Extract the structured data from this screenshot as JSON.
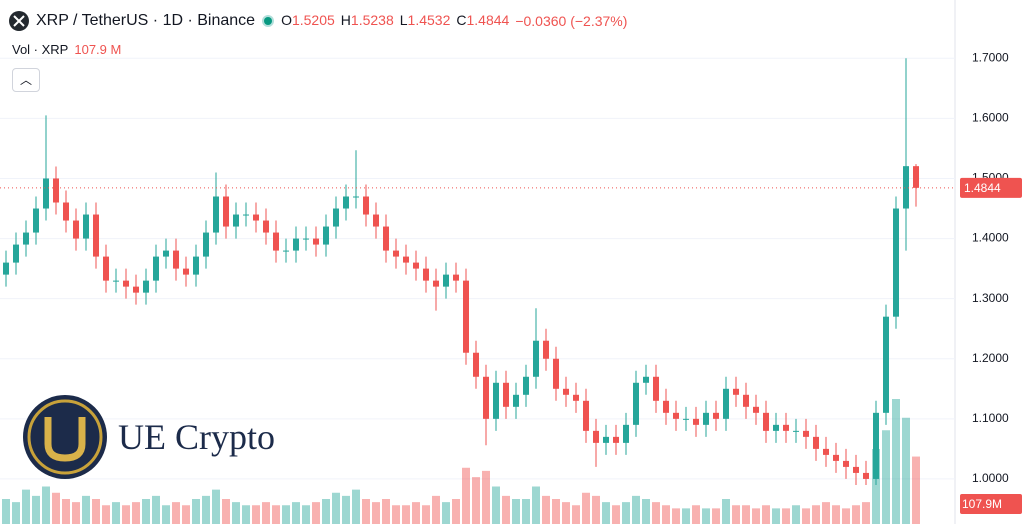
{
  "header": {
    "symbol": "XRP / TetherUS · 1D · Binance",
    "o_label": "O",
    "h_label": "H",
    "l_label": "L",
    "c_label": "C",
    "change": "−0.0360 (−2.37%)",
    "volume_title": "Vol · XRP",
    "volume_value": "107.9 M"
  },
  "watermark": "UE Crypto",
  "chart_data": {
    "type": "candlestick",
    "open": [
      1.34,
      1.36,
      1.39,
      1.41,
      1.45,
      1.5,
      1.46,
      1.43,
      1.4,
      1.44,
      1.37,
      1.33,
      1.33,
      1.32,
      1.31,
      1.33,
      1.37,
      1.38,
      1.35,
      1.34,
      1.37,
      1.41,
      1.47,
      1.42,
      1.44,
      1.44,
      1.43,
      1.41,
      1.38,
      1.38,
      1.4,
      1.4,
      1.39,
      1.42,
      1.45,
      1.47,
      1.47,
      1.44,
      1.42,
      1.38,
      1.37,
      1.36,
      1.35,
      1.33,
      1.32,
      1.34,
      1.33,
      1.21,
      1.17,
      1.1,
      1.16,
      1.12,
      1.14,
      1.17,
      1.23,
      1.2,
      1.15,
      1.14,
      1.13,
      1.08,
      1.06,
      1.07,
      1.06,
      1.09,
      1.16,
      1.17,
      1.13,
      1.11,
      1.1,
      1.1,
      1.09,
      1.11,
      1.1,
      1.15,
      1.14,
      1.12,
      1.11,
      1.08,
      1.09,
      1.08,
      1.08,
      1.07,
      1.05,
      1.04,
      1.03,
      1.02,
      1.01,
      1.0,
      1.11,
      1.27,
      1.45,
      1.5205
    ],
    "high": [
      1.38,
      1.41,
      1.43,
      1.47,
      1.605,
      1.52,
      1.48,
      1.45,
      1.46,
      1.46,
      1.39,
      1.35,
      1.35,
      1.34,
      1.35,
      1.39,
      1.4,
      1.4,
      1.37,
      1.39,
      1.43,
      1.51,
      1.49,
      1.46,
      1.46,
      1.46,
      1.45,
      1.43,
      1.4,
      1.42,
      1.42,
      1.42,
      1.44,
      1.47,
      1.49,
      1.547,
      1.49,
      1.46,
      1.44,
      1.4,
      1.39,
      1.38,
      1.37,
      1.35,
      1.36,
      1.36,
      1.35,
      1.23,
      1.19,
      1.18,
      1.18,
      1.16,
      1.19,
      1.284,
      1.25,
      1.22,
      1.17,
      1.16,
      1.15,
      1.1,
      1.09,
      1.09,
      1.11,
      1.18,
      1.19,
      1.19,
      1.15,
      1.13,
      1.12,
      1.12,
      1.13,
      1.13,
      1.17,
      1.17,
      1.16,
      1.14,
      1.13,
      1.11,
      1.11,
      1.1,
      1.1,
      1.09,
      1.07,
      1.06,
      1.05,
      1.04,
      1.03,
      1.13,
      1.29,
      1.47,
      1.7,
      1.5238
    ],
    "low": [
      1.32,
      1.34,
      1.37,
      1.39,
      1.43,
      1.44,
      1.41,
      1.38,
      1.38,
      1.35,
      1.31,
      1.31,
      1.3,
      1.29,
      1.29,
      1.31,
      1.35,
      1.33,
      1.32,
      1.32,
      1.35,
      1.39,
      1.4,
      1.4,
      1.42,
      1.41,
      1.39,
      1.36,
      1.36,
      1.36,
      1.38,
      1.37,
      1.37,
      1.4,
      1.43,
      1.45,
      1.42,
      1.4,
      1.36,
      1.35,
      1.34,
      1.33,
      1.31,
      1.28,
      1.3,
      1.31,
      1.19,
      1.15,
      1.056,
      1.08,
      1.1,
      1.1,
      1.12,
      1.15,
      1.18,
      1.13,
      1.12,
      1.11,
      1.06,
      1.02,
      1.04,
      1.04,
      1.04,
      1.07,
      1.14,
      1.11,
      1.09,
      1.08,
      1.08,
      1.07,
      1.07,
      1.08,
      1.08,
      1.12,
      1.1,
      1.09,
      1.06,
      1.06,
      1.06,
      1.06,
      1.05,
      1.03,
      1.02,
      1.01,
      1.0,
      0.99,
      0.99,
      0.99,
      1.09,
      1.25,
      1.38,
      1.4532
    ],
    "close": [
      1.36,
      1.39,
      1.41,
      1.45,
      1.5,
      1.46,
      1.43,
      1.4,
      1.44,
      1.37,
      1.33,
      1.33,
      1.32,
      1.31,
      1.33,
      1.37,
      1.38,
      1.35,
      1.34,
      1.37,
      1.41,
      1.47,
      1.42,
      1.44,
      1.44,
      1.43,
      1.41,
      1.38,
      1.38,
      1.4,
      1.4,
      1.39,
      1.42,
      1.45,
      1.47,
      1.47,
      1.44,
      1.42,
      1.38,
      1.37,
      1.36,
      1.35,
      1.33,
      1.32,
      1.34,
      1.33,
      1.21,
      1.17,
      1.1,
      1.16,
      1.12,
      1.14,
      1.17,
      1.23,
      1.2,
      1.15,
      1.14,
      1.13,
      1.08,
      1.06,
      1.07,
      1.06,
      1.09,
      1.16,
      1.17,
      1.13,
      1.11,
      1.1,
      1.1,
      1.09,
      1.11,
      1.1,
      1.15,
      1.14,
      1.12,
      1.11,
      1.08,
      1.09,
      1.08,
      1.08,
      1.07,
      1.05,
      1.04,
      1.03,
      1.02,
      1.01,
      1.0,
      1.11,
      1.27,
      1.45,
      1.5205,
      1.4844
    ],
    "volume": [
      40,
      35,
      55,
      45,
      60,
      50,
      40,
      35,
      45,
      40,
      30,
      35,
      30,
      35,
      40,
      45,
      30,
      35,
      30,
      40,
      45,
      55,
      40,
      35,
      30,
      30,
      35,
      30,
      30,
      35,
      30,
      35,
      40,
      50,
      45,
      55,
      40,
      35,
      40,
      30,
      30,
      35,
      30,
      45,
      35,
      40,
      90,
      75,
      85,
      60,
      45,
      40,
      40,
      60,
      45,
      40,
      35,
      30,
      50,
      45,
      35,
      30,
      35,
      45,
      40,
      35,
      30,
      25,
      25,
      30,
      25,
      25,
      40,
      30,
      30,
      25,
      30,
      25,
      25,
      30,
      25,
      30,
      35,
      30,
      25,
      30,
      35,
      120,
      150,
      200,
      170,
      107.9
    ],
    "volume_label": "107.9M",
    "ylim": [
      0.925,
      1.797
    ],
    "yticks": [
      {
        "value": 1.0,
        "label": "1.0000"
      },
      {
        "value": 1.1,
        "label": "1.1000"
      },
      {
        "value": 1.2,
        "label": "1.2000"
      },
      {
        "value": 1.3,
        "label": "1.3000"
      },
      {
        "value": 1.4,
        "label": "1.4000"
      },
      {
        "value": 1.5,
        "label": "1.5000"
      },
      {
        "value": 1.6,
        "label": "1.6000"
      },
      {
        "value": 1.7,
        "label": "1.7000"
      }
    ],
    "up_color": "#26a69a",
    "down_color": "#ef5350",
    "grid": true
  }
}
